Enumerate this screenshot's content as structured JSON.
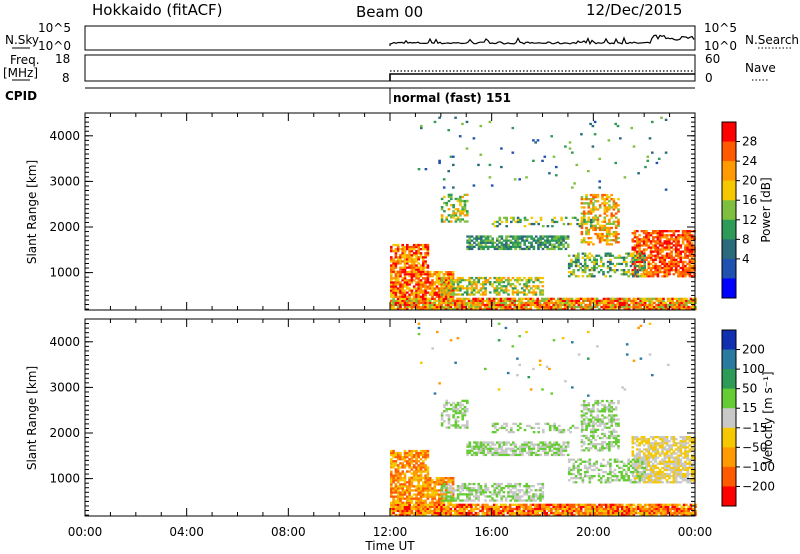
{
  "header": {
    "station": "Hokkaido (fitACF)",
    "beam": "Beam 00",
    "date": "12/Dec/2015"
  },
  "top_panels": {
    "nsky_label": "N.Sky",
    "nsky_ticks": [
      "10^5",
      "10^0"
    ],
    "nsearch_label": "N.Search",
    "nsearch_ticks": [
      "10^5",
      "10^0"
    ],
    "freq_label": "Freq.",
    "freq_unit": "[MHz]",
    "freq_ticks": [
      "18",
      "8"
    ],
    "nave_label": "Nave",
    "nave_ticks": [
      "60",
      "0"
    ],
    "cpid_label": "CPID",
    "cpid_value": "normal (fast) 151"
  },
  "chart_data": [
    {
      "type": "heatmap",
      "panel": "power",
      "ylabel": "Slant Range [km]",
      "y_ticks": [
        "4000",
        "3000",
        "2000",
        "1000"
      ],
      "y_range_km": [
        180,
        4500
      ],
      "x_ticks": [
        "00:00",
        "04:00",
        "08:00",
        "12:00",
        "16:00",
        "20:00",
        "00:00"
      ],
      "x_range_hours": [
        0,
        24
      ],
      "data_start_hour": 12,
      "colorbar_label": "Power [dB]",
      "colorbar_ticks": [
        "28",
        "24",
        "20",
        "16",
        "12",
        "8",
        "4"
      ],
      "colorbar_colors": [
        "#ff0000",
        "#ff5a00",
        "#ff9a00",
        "#f5c800",
        "#7fbf3f",
        "#2e9a58",
        "#2a6a7a",
        "#2050b0",
        "#0000ff"
      ]
    },
    {
      "type": "heatmap",
      "panel": "velocity",
      "ylabel": "Slant Range [km]",
      "y_ticks": [
        "4000",
        "3000",
        "2000",
        "1000"
      ],
      "y_range_km": [
        180,
        4500
      ],
      "x_ticks": [
        "00:00",
        "04:00",
        "08:00",
        "12:00",
        "16:00",
        "20:00",
        "00:00"
      ],
      "x_range_hours": [
        0,
        24
      ],
      "xlabel": "Time UT",
      "data_start_hour": 12,
      "colorbar_label": "Velocity [m s⁻¹]",
      "colorbar_ticks": [
        "200",
        "100",
        "50",
        "15",
        "−15",
        "−50",
        "−100",
        "−200"
      ],
      "colorbar_colors": [
        "#1030b0",
        "#2a7aa0",
        "#2e9a58",
        "#66cc33",
        "#c8c8c8",
        "#f5c800",
        "#ff9a00",
        "#ff5a00",
        "#ff0000"
      ]
    }
  ]
}
